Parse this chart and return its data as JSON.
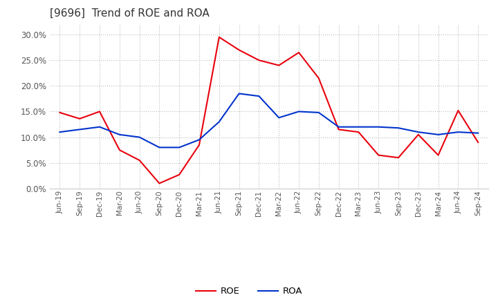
{
  "title": "[9696]  Trend of ROE and ROA",
  "title_fontsize": 11,
  "ylim": [
    0.0,
    0.32
  ],
  "yticks": [
    0.0,
    0.05,
    0.1,
    0.15,
    0.2,
    0.25,
    0.3
  ],
  "x_labels": [
    "Jun-19",
    "Sep-19",
    "Dec-19",
    "Mar-20",
    "Jun-20",
    "Sep-20",
    "Dec-20",
    "Mar-21",
    "Jun-21",
    "Sep-21",
    "Dec-21",
    "Mar-22",
    "Jun-22",
    "Sep-22",
    "Dec-22",
    "Mar-23",
    "Jun-23",
    "Sep-23",
    "Dec-23",
    "Mar-24",
    "Jun-24",
    "Sep-24"
  ],
  "roe_values": [
    0.148,
    0.136,
    0.15,
    0.075,
    0.055,
    0.01,
    0.027,
    0.085,
    0.295,
    0.27,
    0.25,
    0.24,
    0.265,
    0.215,
    0.115,
    0.11,
    0.065,
    0.06,
    0.105,
    0.065,
    0.152,
    0.09
  ],
  "roa_values": [
    0.11,
    0.115,
    0.12,
    0.105,
    0.1,
    0.08,
    0.08,
    0.095,
    0.13,
    0.185,
    0.18,
    0.138,
    0.15,
    0.148,
    0.12,
    0.12,
    0.12,
    0.118,
    0.11,
    0.105,
    0.11,
    0.108
  ],
  "roe_color": "#e8000d",
  "roa_color": "#0033cc",
  "background_color": "#ffffff",
  "grid_color": "#bbbbbb",
  "legend_labels": [
    "ROE",
    "ROA"
  ]
}
